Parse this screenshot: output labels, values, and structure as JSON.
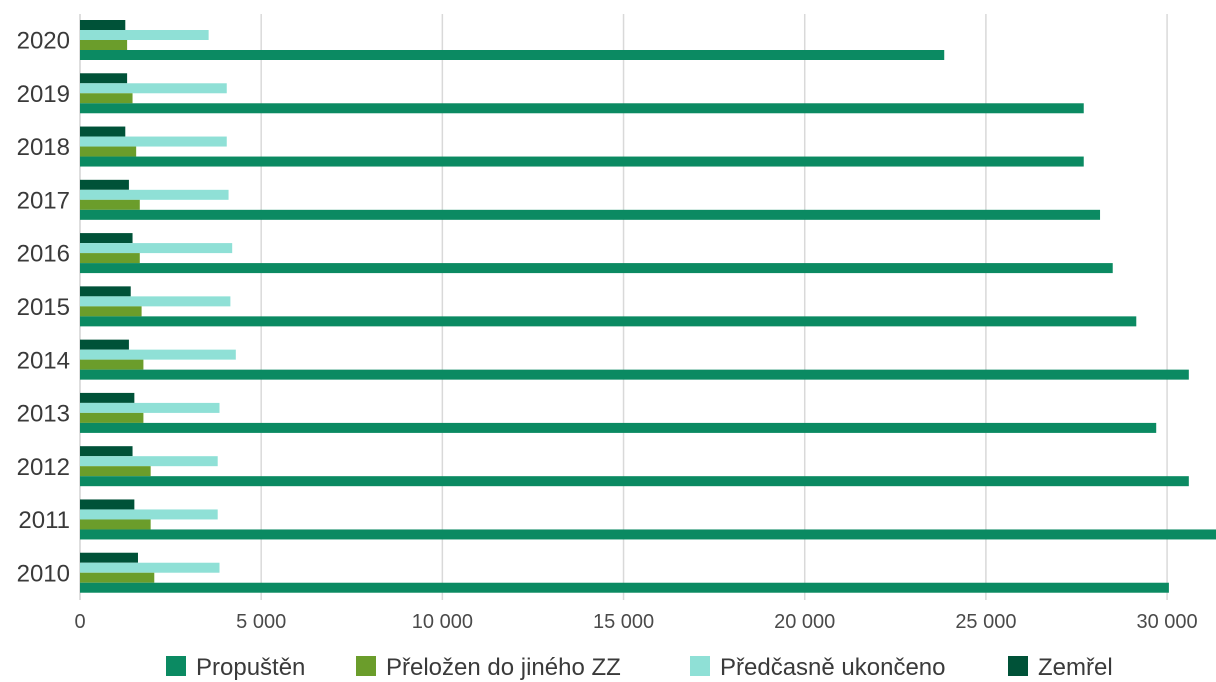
{
  "chart_data": {
    "type": "bar",
    "orientation": "horizontal",
    "categories": [
      "2010",
      "2011",
      "2012",
      "2013",
      "2014",
      "2015",
      "2016",
      "2017",
      "2018",
      "2019",
      "2020"
    ],
    "series": [
      {
        "name": "Propuštěn",
        "color": "#0b8a62",
        "values": [
          30050,
          31350,
          30600,
          29700,
          30600,
          29150,
          28500,
          28150,
          27700,
          27700,
          23850
        ]
      },
      {
        "name": "Přeložen do jiného ZZ",
        "color": "#6b9d2b",
        "values": [
          2050,
          1950,
          1950,
          1750,
          1750,
          1700,
          1650,
          1650,
          1550,
          1450,
          1300
        ]
      },
      {
        "name": "Předčasně ukončeno",
        "color": "#8fe0d6",
        "values": [
          3850,
          3800,
          3800,
          3850,
          4300,
          4150,
          4200,
          4100,
          4050,
          4050,
          3550
        ]
      },
      {
        "name": "Zemřel",
        "color": "#005238",
        "values": [
          1600,
          1500,
          1450,
          1500,
          1350,
          1400,
          1450,
          1350,
          1250,
          1300,
          1250
        ]
      }
    ],
    "xlim": [
      0,
      31350
    ],
    "xticks": [
      "0",
      "5 000",
      "10 000",
      "15 000",
      "20 000",
      "25 000",
      "30 000"
    ],
    "xtick_values": [
      0,
      5000,
      10000,
      15000,
      20000,
      25000,
      30000
    ],
    "grid": true,
    "legend": "bottom",
    "title": "",
    "xlabel": "",
    "ylabel": ""
  }
}
